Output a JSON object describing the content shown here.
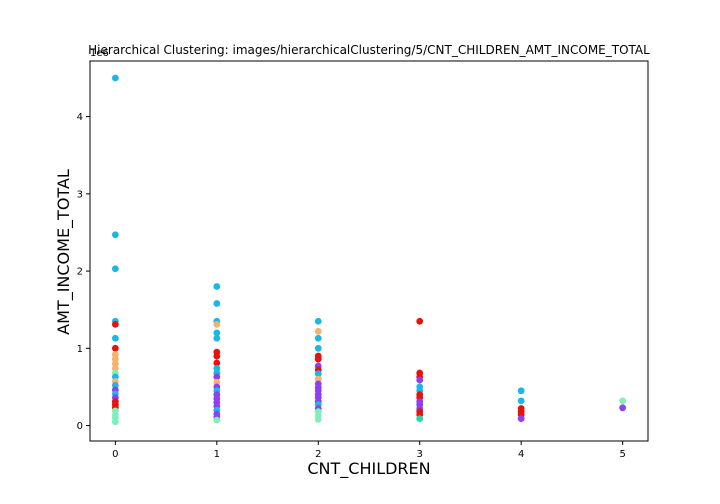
{
  "chart_data": {
    "type": "scatter",
    "title": "Hierarchical Clustering: images/hierarchicalClustering/5/CNT_CHILDREN_AMT_INCOME_TOTAL",
    "xlabel": "CNT_CHILDREN",
    "ylabel": "AMT_INCOME_TOTAL",
    "y_offset_label": "1e6",
    "xlim": [
      -0.25,
      5.25
    ],
    "ylim": [
      -0.2,
      4.72
    ],
    "x_ticks": [
      0,
      1,
      2,
      3,
      4,
      5
    ],
    "y_ticks": [
      0,
      1,
      2,
      3,
      4
    ],
    "y_unit_scale": "1e6",
    "grid": false,
    "points": [
      {
        "x": 0,
        "y": 4.5,
        "color": "#1cb6e8"
      },
      {
        "x": 0,
        "y": 2.47,
        "color": "#1cb6e8"
      },
      {
        "x": 0,
        "y": 2.03,
        "color": "#1cb6e8"
      },
      {
        "x": 0,
        "y": 1.35,
        "color": "#1cb6e8"
      },
      {
        "x": 0,
        "y": 1.31,
        "color": "#e8120c"
      },
      {
        "x": 0,
        "y": 1.13,
        "color": "#1cb6e8"
      },
      {
        "x": 0,
        "y": 1.0,
        "color": "#e8120c"
      },
      {
        "x": 0,
        "y": 0.92,
        "color": "#f6b16b"
      },
      {
        "x": 0,
        "y": 0.86,
        "color": "#f6b16b"
      },
      {
        "x": 0,
        "y": 0.8,
        "color": "#f6b16b"
      },
      {
        "x": 0,
        "y": 0.74,
        "color": "#f6b16b"
      },
      {
        "x": 0,
        "y": 0.68,
        "color": "#7ef0b8"
      },
      {
        "x": 0,
        "y": 0.63,
        "color": "#1cb6e8"
      },
      {
        "x": 0,
        "y": 0.57,
        "color": "#f6b16b"
      },
      {
        "x": 0,
        "y": 0.52,
        "color": "#1cb6e8"
      },
      {
        "x": 0,
        "y": 0.46,
        "color": "#8f3ff2"
      },
      {
        "x": 0,
        "y": 0.41,
        "color": "#1cb6e8"
      },
      {
        "x": 0,
        "y": 0.36,
        "color": "#8f3ff2"
      },
      {
        "x": 0,
        "y": 0.31,
        "color": "#e8120c"
      },
      {
        "x": 0,
        "y": 0.27,
        "color": "#e8120c"
      },
      {
        "x": 0,
        "y": 0.23,
        "color": "#e8120c"
      },
      {
        "x": 0,
        "y": 0.19,
        "color": "#7ef0b8"
      },
      {
        "x": 0,
        "y": 0.14,
        "color": "#7ef0b8"
      },
      {
        "x": 0,
        "y": 0.1,
        "color": "#7ef0b8"
      },
      {
        "x": 0,
        "y": 0.05,
        "color": "#7ef0b8"
      },
      {
        "x": 1,
        "y": 1.8,
        "color": "#1cb6e8"
      },
      {
        "x": 1,
        "y": 1.58,
        "color": "#1cb6e8"
      },
      {
        "x": 1,
        "y": 1.35,
        "color": "#1cb6e8"
      },
      {
        "x": 1,
        "y": 1.31,
        "color": "#f6b16b"
      },
      {
        "x": 1,
        "y": 1.2,
        "color": "#1cb6e8"
      },
      {
        "x": 1,
        "y": 1.13,
        "color": "#1cb6e8"
      },
      {
        "x": 1,
        "y": 0.95,
        "color": "#e8120c"
      },
      {
        "x": 1,
        "y": 0.9,
        "color": "#e8120c"
      },
      {
        "x": 1,
        "y": 0.81,
        "color": "#e8120c"
      },
      {
        "x": 1,
        "y": 0.74,
        "color": "#1cb6e8"
      },
      {
        "x": 1,
        "y": 0.68,
        "color": "#1cb6e8"
      },
      {
        "x": 1,
        "y": 0.63,
        "color": "#8f3ff2"
      },
      {
        "x": 1,
        "y": 0.56,
        "color": "#f6b16b"
      },
      {
        "x": 1,
        "y": 0.5,
        "color": "#8f3ff2"
      },
      {
        "x": 1,
        "y": 0.45,
        "color": "#1cb6e8"
      },
      {
        "x": 1,
        "y": 0.4,
        "color": "#8f3ff2"
      },
      {
        "x": 1,
        "y": 0.35,
        "color": "#8f3ff2"
      },
      {
        "x": 1,
        "y": 0.3,
        "color": "#8f3ff2"
      },
      {
        "x": 1,
        "y": 0.25,
        "color": "#8f3ff2"
      },
      {
        "x": 1,
        "y": 0.2,
        "color": "#1cb6e8"
      },
      {
        "x": 1,
        "y": 0.15,
        "color": "#8f3ff2"
      },
      {
        "x": 1,
        "y": 0.11,
        "color": "#8f3ff2"
      },
      {
        "x": 1,
        "y": 0.07,
        "color": "#7ef0b8"
      },
      {
        "x": 2,
        "y": 1.35,
        "color": "#1cb6e8"
      },
      {
        "x": 2,
        "y": 1.22,
        "color": "#f6b16b"
      },
      {
        "x": 2,
        "y": 1.13,
        "color": "#1cb6e8"
      },
      {
        "x": 2,
        "y": 1.0,
        "color": "#1cb6e8"
      },
      {
        "x": 2,
        "y": 0.9,
        "color": "#e8120c"
      },
      {
        "x": 2,
        "y": 0.86,
        "color": "#e8120c"
      },
      {
        "x": 2,
        "y": 0.77,
        "color": "#8f3ff2"
      },
      {
        "x": 2,
        "y": 0.72,
        "color": "#e8120c"
      },
      {
        "x": 2,
        "y": 0.67,
        "color": "#1cb6e8"
      },
      {
        "x": 2,
        "y": 0.6,
        "color": "#f6b16b"
      },
      {
        "x": 2,
        "y": 0.54,
        "color": "#8f3ff2"
      },
      {
        "x": 2,
        "y": 0.49,
        "color": "#8f3ff2"
      },
      {
        "x": 2,
        "y": 0.45,
        "color": "#8f3ff2"
      },
      {
        "x": 2,
        "y": 0.4,
        "color": "#8f3ff2"
      },
      {
        "x": 2,
        "y": 0.36,
        "color": "#8f3ff2"
      },
      {
        "x": 2,
        "y": 0.31,
        "color": "#8f3ff2"
      },
      {
        "x": 2,
        "y": 0.27,
        "color": "#1cb6e8"
      },
      {
        "x": 2,
        "y": 0.22,
        "color": "#8f3ff2"
      },
      {
        "x": 2,
        "y": 0.18,
        "color": "#7ef0b8"
      },
      {
        "x": 2,
        "y": 0.13,
        "color": "#7ef0b8"
      },
      {
        "x": 2,
        "y": 0.08,
        "color": "#7ef0b8"
      },
      {
        "x": 3,
        "y": 1.35,
        "color": "#e8120c"
      },
      {
        "x": 3,
        "y": 0.68,
        "color": "#e8120c"
      },
      {
        "x": 3,
        "y": 0.63,
        "color": "#e8120c"
      },
      {
        "x": 3,
        "y": 0.59,
        "color": "#8f3ff2"
      },
      {
        "x": 3,
        "y": 0.5,
        "color": "#1cb6e8"
      },
      {
        "x": 3,
        "y": 0.45,
        "color": "#1cb6e8"
      },
      {
        "x": 3,
        "y": 0.4,
        "color": "#e8120c"
      },
      {
        "x": 3,
        "y": 0.36,
        "color": "#e8120c"
      },
      {
        "x": 3,
        "y": 0.31,
        "color": "#8f3ff2"
      },
      {
        "x": 3,
        "y": 0.27,
        "color": "#8f3ff2"
      },
      {
        "x": 3,
        "y": 0.22,
        "color": "#8f3ff2"
      },
      {
        "x": 3,
        "y": 0.18,
        "color": "#e8120c"
      },
      {
        "x": 3,
        "y": 0.14,
        "color": "#e8120c"
      },
      {
        "x": 3,
        "y": 0.09,
        "color": "#2ad3b0"
      },
      {
        "x": 4,
        "y": 0.45,
        "color": "#1cb6e8"
      },
      {
        "x": 4,
        "y": 0.32,
        "color": "#1cb6e8"
      },
      {
        "x": 4,
        "y": 0.22,
        "color": "#e8120c"
      },
      {
        "x": 4,
        "y": 0.18,
        "color": "#e8120c"
      },
      {
        "x": 4,
        "y": 0.14,
        "color": "#e8120c"
      },
      {
        "x": 4,
        "y": 0.09,
        "color": "#8f3ff2"
      },
      {
        "x": 5,
        "y": 0.32,
        "color": "#7ef0b8"
      },
      {
        "x": 5,
        "y": 0.23,
        "color": "#8f3ff2"
      }
    ]
  }
}
